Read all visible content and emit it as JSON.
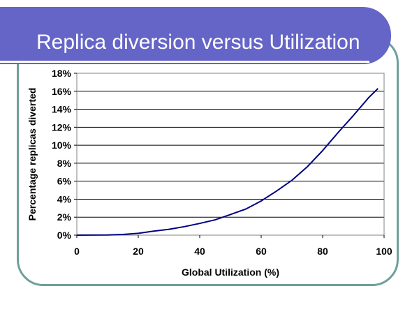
{
  "slide": {
    "title": "Replica diversion versus Utilization"
  },
  "colors": {
    "title_band": "#6565c8",
    "frame_border": "#6f9f9b",
    "series_line": "#000080",
    "grid": "#000000"
  },
  "chart_data": {
    "type": "line",
    "xlabel": "Global Utilization (%)",
    "ylabel": "Percentage replicas diverted",
    "xlim": [
      0,
      100
    ],
    "ylim": [
      0,
      18
    ],
    "x_ticks": [
      0,
      20,
      40,
      60,
      80,
      100
    ],
    "y_ticks": [
      0,
      2,
      4,
      6,
      8,
      10,
      12,
      14,
      16,
      18
    ],
    "y_tick_suffix": "%",
    "grid": "horizontal",
    "legend": "none",
    "series": [
      {
        "x": [
          0,
          10,
          15,
          20,
          25,
          30,
          35,
          40,
          45,
          50,
          55,
          60,
          65,
          70,
          75,
          80,
          85,
          90,
          95,
          98
        ],
        "y": [
          0,
          0.02,
          0.08,
          0.2,
          0.45,
          0.65,
          0.95,
          1.3,
          1.7,
          2.3,
          2.9,
          3.8,
          4.9,
          6.1,
          7.6,
          9.4,
          11.4,
          13.3,
          15.3,
          16.3
        ]
      }
    ]
  }
}
